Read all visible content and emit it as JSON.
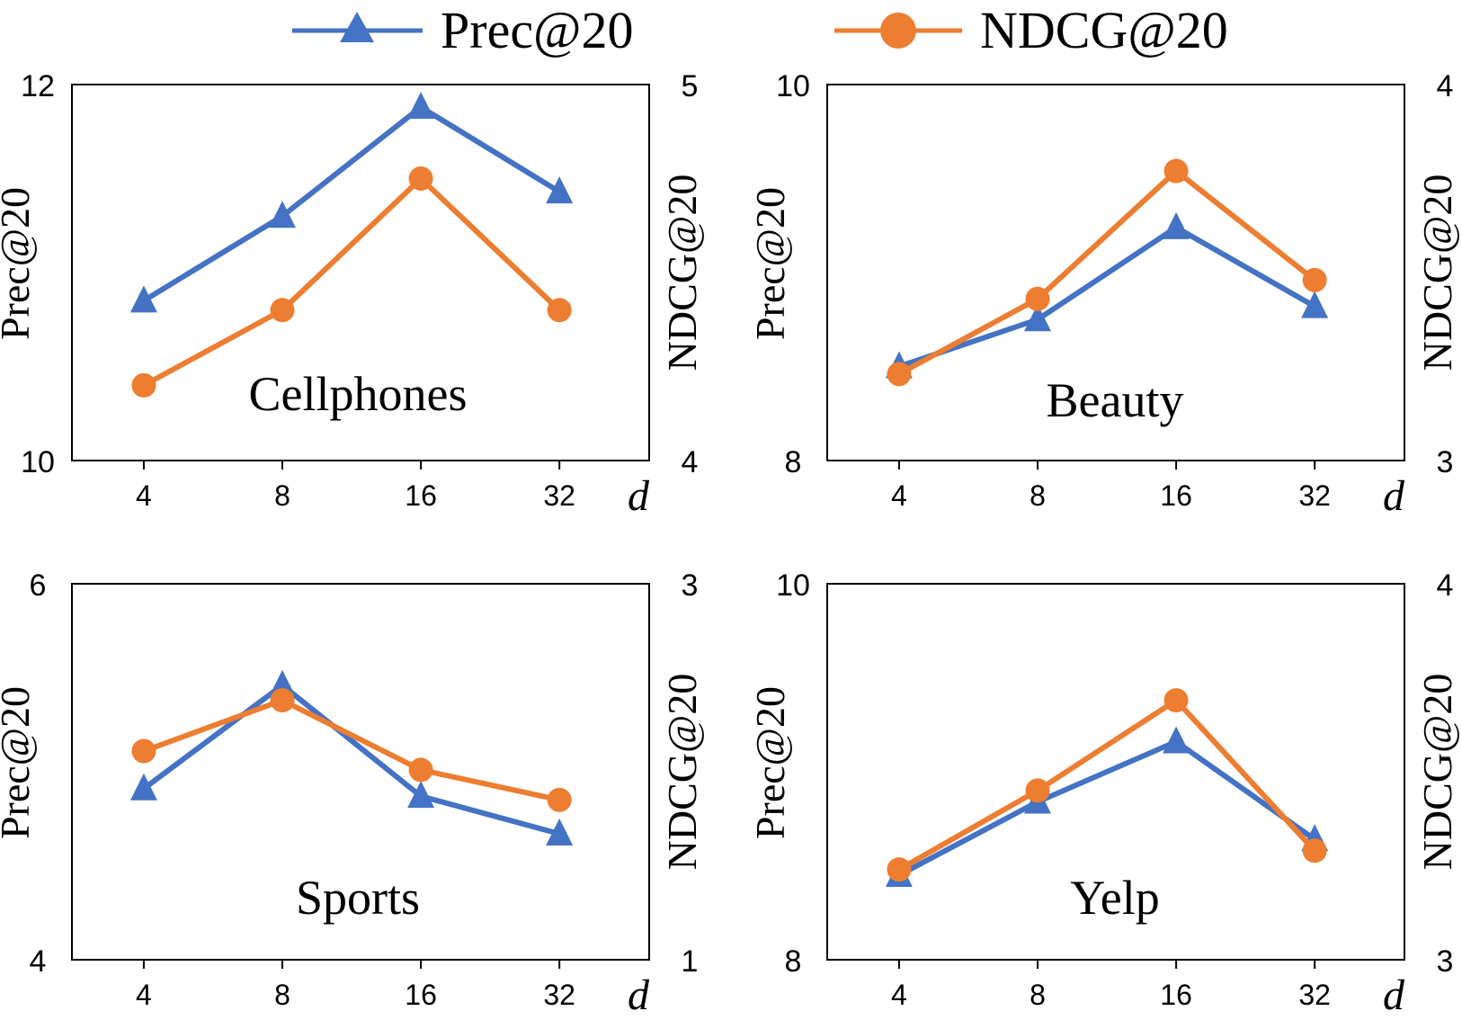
{
  "legend": {
    "items": [
      {
        "label": "Prec@20",
        "color": "#4472C4",
        "marker": "triangle"
      },
      {
        "label": "NDCG@20",
        "color": "#ED7D31",
        "marker": "circle"
      }
    ],
    "placement": "top-center"
  },
  "chart_data": [
    {
      "type": "line",
      "title": "Cellphones",
      "xlabel": "d",
      "ylabel": "Prec@20",
      "y2label": "NDCG@20",
      "categories": [
        "4",
        "8",
        "16",
        "32"
      ],
      "ylim": [
        10,
        12
      ],
      "y2lim": [
        4,
        5
      ],
      "yticks": [
        "10",
        "12"
      ],
      "y2ticks": [
        "4",
        "5"
      ],
      "series": [
        {
          "name": "Prec@20",
          "axis": "left",
          "color": "#4472C4",
          "marker": "triangle",
          "values": [
            10.85,
            11.3,
            11.88,
            11.43
          ]
        },
        {
          "name": "NDCG@20",
          "axis": "right",
          "color": "#ED7D31",
          "marker": "circle",
          "values": [
            4.2,
            4.4,
            4.75,
            4.4
          ]
        }
      ]
    },
    {
      "type": "line",
      "title": "Beauty",
      "xlabel": "d",
      "ylabel": "Prec@20",
      "y2label": "NDCG@20",
      "categories": [
        "4",
        "8",
        "16",
        "32"
      ],
      "ylim": [
        8,
        10
      ],
      "y2lim": [
        3,
        4
      ],
      "yticks": [
        "8",
        "10"
      ],
      "y2ticks": [
        "3",
        "4"
      ],
      "series": [
        {
          "name": "Prec@20",
          "axis": "left",
          "color": "#4472C4",
          "marker": "triangle",
          "values": [
            8.5,
            8.75,
            9.24,
            8.82
          ]
        },
        {
          "name": "NDCG@20",
          "axis": "right",
          "color": "#ED7D31",
          "marker": "circle",
          "values": [
            3.23,
            3.43,
            3.77,
            3.48
          ]
        }
      ]
    },
    {
      "type": "line",
      "title": "Sports",
      "xlabel": "d",
      "ylabel": "Prec@20",
      "y2label": "NDCG@20",
      "categories": [
        "4",
        "8",
        "16",
        "32"
      ],
      "ylim": [
        4,
        6
      ],
      "y2lim": [
        1,
        3
      ],
      "yticks": [
        "4",
        "6"
      ],
      "y2ticks": [
        "1",
        "3"
      ],
      "series": [
        {
          "name": "Prec@20",
          "axis": "left",
          "color": "#4472C4",
          "marker": "triangle",
          "values": [
            4.91,
            5.46,
            4.87,
            4.67
          ]
        },
        {
          "name": "NDCG@20",
          "axis": "right",
          "color": "#ED7D31",
          "marker": "circle",
          "values": [
            2.11,
            2.38,
            2.01,
            1.85
          ]
        }
      ]
    },
    {
      "type": "line",
      "title": "Yelp",
      "xlabel": "d",
      "ylabel": "Prec@20",
      "y2label": "NDCG@20",
      "categories": [
        "4",
        "8",
        "16",
        "32"
      ],
      "ylim": [
        8,
        10
      ],
      "y2lim": [
        3,
        4
      ],
      "yticks": [
        "8",
        "10"
      ],
      "y2ticks": [
        "3",
        "4"
      ],
      "series": [
        {
          "name": "Prec@20",
          "axis": "left",
          "color": "#4472C4",
          "marker": "triangle",
          "values": [
            8.45,
            8.84,
            9.16,
            8.64
          ]
        },
        {
          "name": "NDCG@20",
          "axis": "right",
          "color": "#ED7D31",
          "marker": "circle",
          "values": [
            3.24,
            3.45,
            3.69,
            3.29
          ]
        }
      ]
    }
  ]
}
